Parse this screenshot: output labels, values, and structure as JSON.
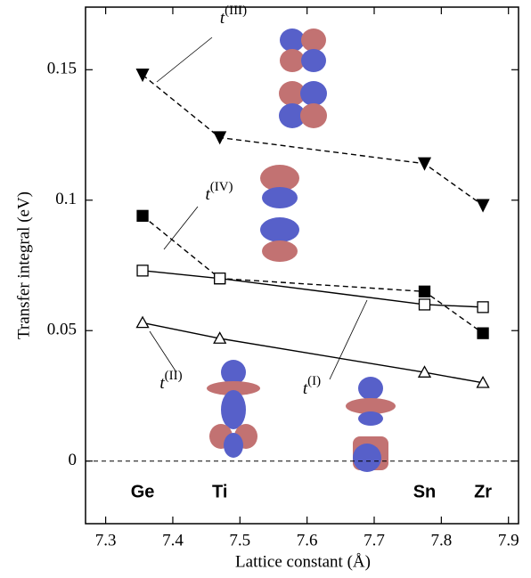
{
  "chart_data": {
    "type": "line",
    "xlabel": "Lattice constant  (Å)",
    "ylabel": "Transfer integral (eV)",
    "x": [
      7.355,
      7.47,
      7.775,
      7.862
    ],
    "x_labels": [
      "Ge",
      "Ti",
      "Sn",
      "Zr"
    ],
    "series": [
      {
        "name": "t(III)",
        "color": "#000000",
        "marker": "triangle-down",
        "linestyle": "dashed",
        "values": [
          0.148,
          0.124,
          0.114,
          0.098
        ]
      },
      {
        "name": "t(IV)",
        "color": "#000000",
        "marker": "square",
        "linestyle": "dashed",
        "values": [
          0.094,
          0.07,
          0.065,
          0.049
        ]
      },
      {
        "name": "t(I)",
        "color": "#000000",
        "marker": "square-open",
        "linestyle": "solid",
        "values": [
          0.073,
          0.07,
          0.06,
          0.059
        ]
      },
      {
        "name": "t(II)",
        "color": "#000000",
        "marker": "triangle-open",
        "linestyle": "solid",
        "values": [
          0.053,
          0.047,
          0.034,
          0.03
        ]
      }
    ],
    "xlim": [
      7.27,
      7.915
    ],
    "xticks": [
      7.3,
      7.4,
      7.5,
      7.6,
      7.7,
      7.8,
      7.9
    ],
    "ylim": [
      -0.024,
      0.174
    ],
    "yticks": [
      0,
      0.05,
      0.1,
      0.15
    ],
    "zero_line": true
  }
}
